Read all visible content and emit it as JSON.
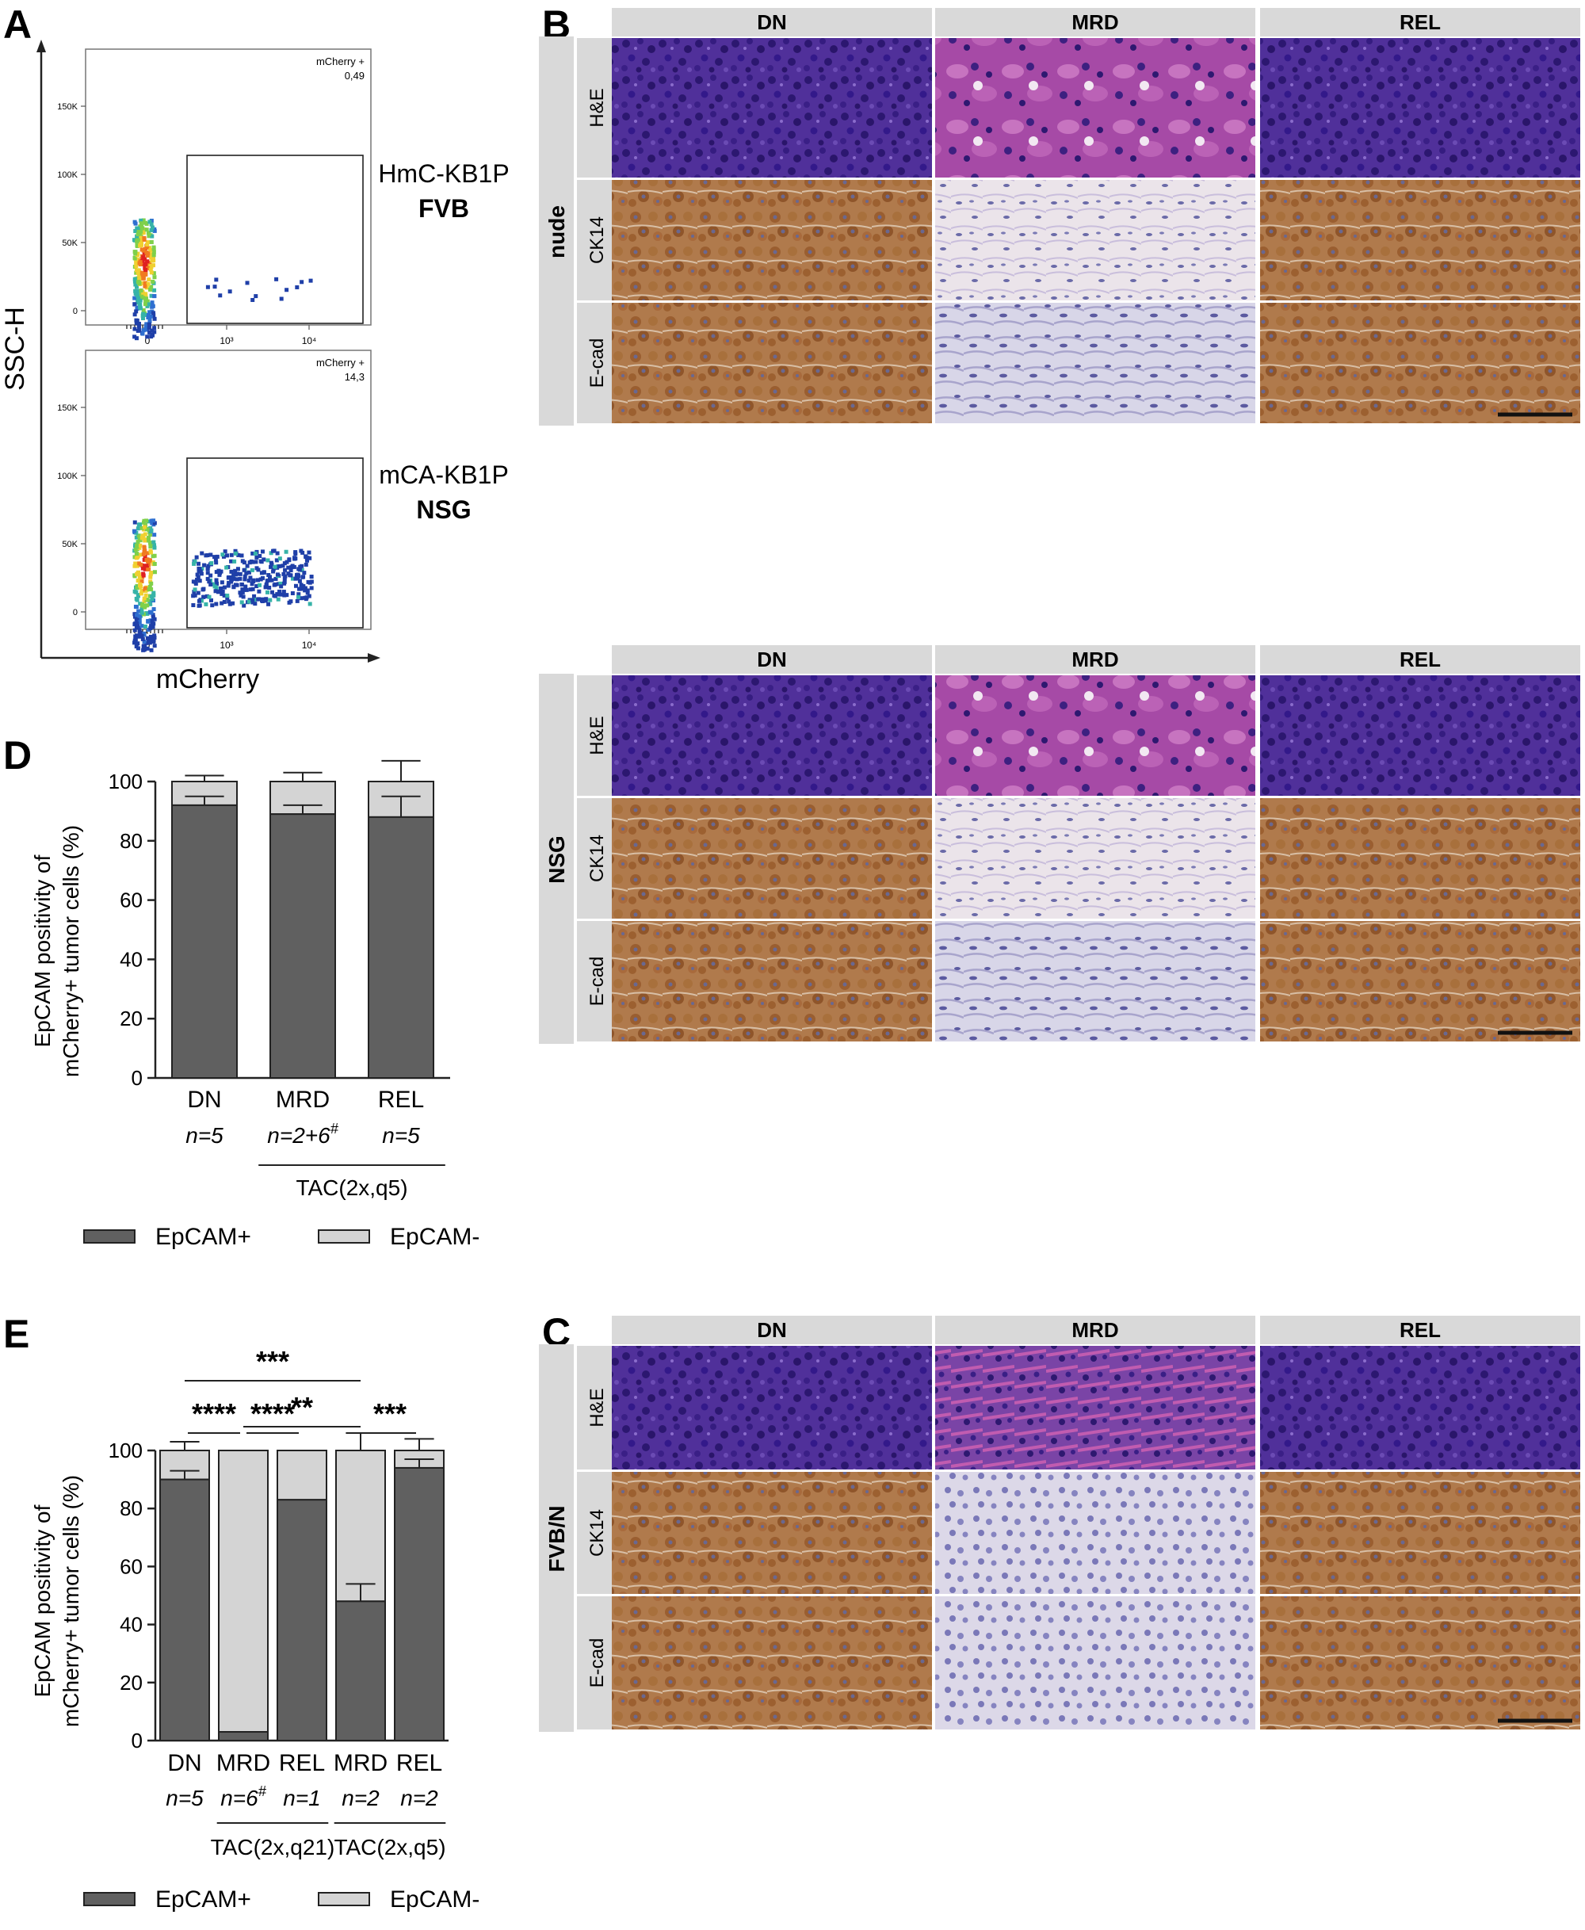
{
  "panel_letters": [
    "A",
    "B",
    "C",
    "D",
    "E"
  ],
  "panelA": {
    "y_axis_label": "SSC-H",
    "x_axis_label": "mCherry",
    "plots": [
      {
        "gate_title": "mCherry +",
        "gate_value": "0,49",
        "sample": "HmC-KB1P",
        "host": "FVB",
        "y_ticks": [
          "150K",
          "100K",
          "50K",
          "0"
        ],
        "x_ticks": [
          "0",
          "10³",
          "10⁴"
        ]
      },
      {
        "gate_title": "mCherry +",
        "gate_value": "14,3",
        "sample": "mCA-KB1P",
        "host": "NSG",
        "y_ticks": [
          "150K",
          "100K",
          "50K",
          "0"
        ],
        "x_ticks": [
          "0",
          "10³",
          "10⁴"
        ]
      }
    ]
  },
  "histology_grids": [
    {
      "panel": "B",
      "host": "nude",
      "columns": [
        "DN",
        "MRD",
        "REL"
      ],
      "rows": [
        "H&E",
        "CK14",
        "E-cad"
      ]
    },
    {
      "panel": "",
      "host": "NSG",
      "columns": [
        "DN",
        "MRD",
        "REL"
      ],
      "rows": [
        "H&E",
        "CK14",
        "E-cad"
      ]
    },
    {
      "panel": "C",
      "host": "FVB/N",
      "columns": [
        "DN",
        "MRD",
        "REL"
      ],
      "rows": [
        "H&E",
        "CK14",
        "E-cad"
      ]
    }
  ],
  "colors": {
    "he_purple": "#4a2c8c",
    "he_pink": "#b04ca8",
    "ihc_brown": "#a86a3c",
    "stroma_light": "#e8e0e4",
    "epcam_pos": "#606060",
    "epcam_neg": "#d4d4d4",
    "header_gray": "#d9d9d9"
  },
  "chart_data": [
    {
      "panel": "D",
      "type": "bar",
      "stacked": true,
      "ylabel": "EpCAM positivity of\nmCherry+ tumor cells (%)",
      "ylabel_lines": [
        "EpCAM positivity of",
        "mCherry+ tumor cells (%)"
      ],
      "ylim": [
        0,
        100
      ],
      "yticks": [
        0,
        20,
        40,
        60,
        80,
        100
      ],
      "categories": [
        "DN",
        "MRD",
        "REL"
      ],
      "n_labels": [
        "n=5",
        "n=2+6",
        "n=5"
      ],
      "n_superscript": [
        "",
        "#",
        ""
      ],
      "group_label": "TAC(2x,q5)",
      "group_span": [
        1,
        2
      ],
      "series": [
        {
          "name": "EpCAM+",
          "values": [
            92,
            89,
            88
          ],
          "errors": [
            3,
            3,
            7
          ]
        },
        {
          "name": "EpCAM-",
          "values": [
            8,
            11,
            12
          ],
          "errors": [
            2,
            3,
            7
          ]
        }
      ],
      "legend": "bottom"
    },
    {
      "panel": "E",
      "type": "bar",
      "stacked": true,
      "ylabel": "EpCAM positivity of\nmCherry+ tumor cells (%)",
      "ylabel_lines": [
        "EpCAM positivity of",
        "mCherry+ tumor cells (%)"
      ],
      "ylim": [
        0,
        100
      ],
      "yticks": [
        0,
        20,
        40,
        60,
        80,
        100
      ],
      "categories": [
        "DN",
        "MRD",
        "REL",
        "MRD",
        "REL"
      ],
      "n_labels": [
        "n=5",
        "n=6",
        "n=1",
        "n=2",
        "n=2"
      ],
      "n_superscript": [
        "",
        "#",
        "",
        "",
        ""
      ],
      "groups": [
        {
          "label": "TAC(2x,q21)",
          "span": [
            1,
            2
          ]
        },
        {
          "label": "TAC(2x,q5)",
          "span": [
            3,
            4
          ]
        }
      ],
      "series": [
        {
          "name": "EpCAM+",
          "values": [
            90,
            3,
            83,
            48,
            94
          ],
          "errors": [
            3,
            0,
            0,
            6,
            3
          ]
        },
        {
          "name": "EpCAM-",
          "values": [
            10,
            97,
            17,
            52,
            6
          ],
          "errors": [
            3,
            0,
            0,
            6,
            4
          ]
        }
      ],
      "significance": [
        {
          "from": 0,
          "to": 3,
          "label": "***"
        },
        {
          "from": 1,
          "to": 3,
          "label": "**"
        },
        {
          "from": 0,
          "to": 1,
          "label": "****"
        },
        {
          "from": 1,
          "to": 2,
          "label": "****"
        },
        {
          "from": 3,
          "to": 4,
          "label": "***"
        }
      ],
      "legend": "bottom"
    }
  ]
}
